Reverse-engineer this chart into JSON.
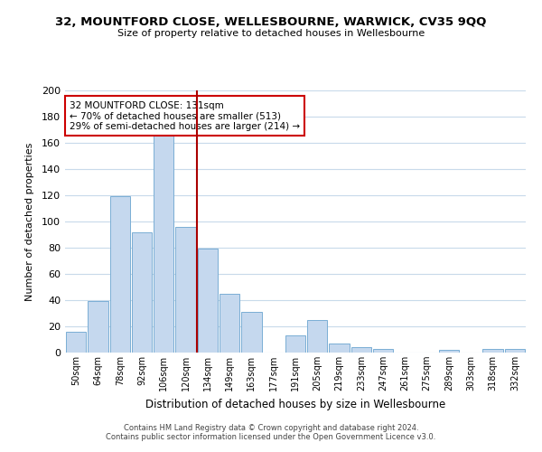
{
  "title": "32, MOUNTFORD CLOSE, WELLESBOURNE, WARWICK, CV35 9QQ",
  "subtitle": "Size of property relative to detached houses in Wellesbourne",
  "xlabel": "Distribution of detached houses by size in Wellesbourne",
  "ylabel": "Number of detached properties",
  "bar_labels": [
    "50sqm",
    "64sqm",
    "78sqm",
    "92sqm",
    "106sqm",
    "120sqm",
    "134sqm",
    "149sqm",
    "163sqm",
    "177sqm",
    "191sqm",
    "205sqm",
    "219sqm",
    "233sqm",
    "247sqm",
    "261sqm",
    "275sqm",
    "289sqm",
    "303sqm",
    "318sqm",
    "332sqm"
  ],
  "bar_values": [
    16,
    39,
    119,
    92,
    166,
    96,
    79,
    45,
    31,
    0,
    13,
    25,
    7,
    4,
    3,
    0,
    0,
    2,
    0,
    3,
    3
  ],
  "bar_color": "#c5d8ee",
  "bar_edge_color": "#7aaed4",
  "vline_color": "#aa0000",
  "annotation_text": "32 MOUNTFORD CLOSE: 131sqm\n← 70% of detached houses are smaller (513)\n29% of semi-detached houses are larger (214) →",
  "annotation_box_color": "#ffffff",
  "annotation_box_edge": "#cc0000",
  "ylim": [
    0,
    200
  ],
  "yticks": [
    0,
    20,
    40,
    60,
    80,
    100,
    120,
    140,
    160,
    180,
    200
  ],
  "footer_line1": "Contains HM Land Registry data © Crown copyright and database right 2024.",
  "footer_line2": "Contains public sector information licensed under the Open Government Licence v3.0.",
  "background_color": "#ffffff",
  "grid_color": "#c8daea"
}
